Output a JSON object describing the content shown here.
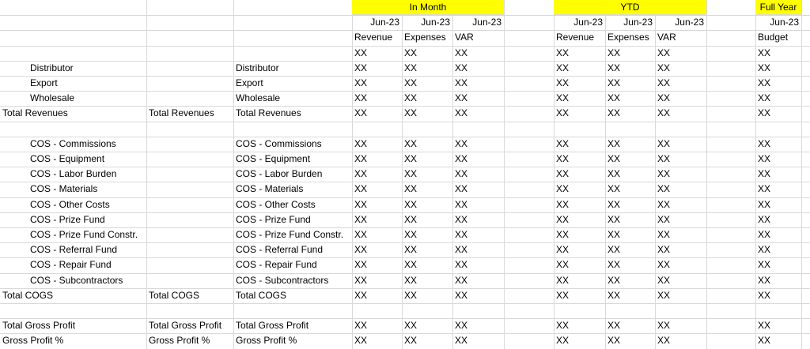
{
  "header": {
    "groups": [
      "In Month",
      "YTD",
      "Full Year"
    ],
    "dates": [
      "Jun-23",
      "Jun-23",
      "Jun-23",
      "Jun-23",
      "Jun-23",
      "Jun-23",
      "Jun-23"
    ],
    "measures": [
      "Revenue",
      "Expenses",
      "VAR",
      "Revenue",
      "Expenses",
      "VAR",
      "Budget"
    ]
  },
  "sections": [
    [
      {
        "values": [
          "XX",
          "XX",
          "XX",
          "XX",
          "XX",
          "XX",
          "XX"
        ]
      },
      {
        "a": "Distributor",
        "c": "Distributor",
        "values": [
          "XX",
          "XX",
          "XX",
          "XX",
          "XX",
          "XX",
          "XX"
        ]
      },
      {
        "a": "Export",
        "c": "Export",
        "values": [
          "XX",
          "XX",
          "XX",
          "XX",
          "XX",
          "XX",
          "XX"
        ]
      },
      {
        "a": "Wholesale",
        "c": "Wholesale",
        "values": [
          "XX",
          "XX",
          "XX",
          "XX",
          "XX",
          "XX",
          "XX"
        ]
      },
      {
        "a": "Total Revenues",
        "b": "Total Revenues",
        "c": "Total Revenues",
        "values": [
          "XX",
          "XX",
          "XX",
          "XX",
          "XX",
          "XX",
          "XX"
        ]
      }
    ],
    [
      {
        "a": "COS - Commissions",
        "c": "COS - Commissions",
        "values": [
          "XX",
          "XX",
          "XX",
          "XX",
          "XX",
          "XX",
          "XX"
        ]
      },
      {
        "a": "COS - Equipment",
        "c": "COS - Equipment",
        "values": [
          "XX",
          "XX",
          "XX",
          "XX",
          "XX",
          "XX",
          "XX"
        ]
      },
      {
        "a": "COS - Labor Burden",
        "c": "COS - Labor Burden",
        "values": [
          "XX",
          "XX",
          "XX",
          "XX",
          "XX",
          "XX",
          "XX"
        ]
      },
      {
        "a": "COS - Materials",
        "c": "COS - Materials",
        "values": [
          "XX",
          "XX",
          "XX",
          "XX",
          "XX",
          "XX",
          "XX"
        ]
      },
      {
        "a": "COS - Other Costs",
        "c": "COS - Other Costs",
        "values": [
          "XX",
          "XX",
          "XX",
          "XX",
          "XX",
          "XX",
          "XX"
        ]
      },
      {
        "a": "COS - Prize Fund",
        "c": "COS - Prize Fund",
        "values": [
          "XX",
          "XX",
          "XX",
          "XX",
          "XX",
          "XX",
          "XX"
        ]
      },
      {
        "a": "COS - Prize Fund Constr.",
        "c": "COS - Prize Fund Constr.",
        "values": [
          "XX",
          "XX",
          "XX",
          "XX",
          "XX",
          "XX",
          "XX"
        ]
      },
      {
        "a": "COS - Referral Fund",
        "c": "COS - Referral Fund",
        "values": [
          "XX",
          "XX",
          "XX",
          "XX",
          "XX",
          "XX",
          "XX"
        ]
      },
      {
        "a": "COS - Repair Fund",
        "c": "COS - Repair Fund",
        "values": [
          "XX",
          "XX",
          "XX",
          "XX",
          "XX",
          "XX",
          "XX"
        ]
      },
      {
        "a": "COS - Subcontractors",
        "c": "COS - Subcontractors",
        "values": [
          "XX",
          "XX",
          "XX",
          "XX",
          "XX",
          "XX",
          "XX"
        ]
      },
      {
        "a": "Total COGS",
        "b": "Total COGS",
        "c": "Total COGS",
        "values": [
          "XX",
          "XX",
          "XX",
          "XX",
          "XX",
          "XX",
          "XX"
        ]
      }
    ],
    [
      {
        "a": "Total Gross Profit",
        "b": "Total Gross Profit",
        "c": "Total Gross Profit",
        "values": [
          "XX",
          "XX",
          "XX",
          "XX",
          "XX",
          "XX",
          "XX"
        ]
      },
      {
        "a": "Gross Profit %",
        "b": "Gross Profit %",
        "c": "Gross Profit %",
        "values": [
          "XX",
          "XX",
          "XX",
          "XX",
          "XX",
          "XX",
          "XX"
        ]
      }
    ]
  ]
}
